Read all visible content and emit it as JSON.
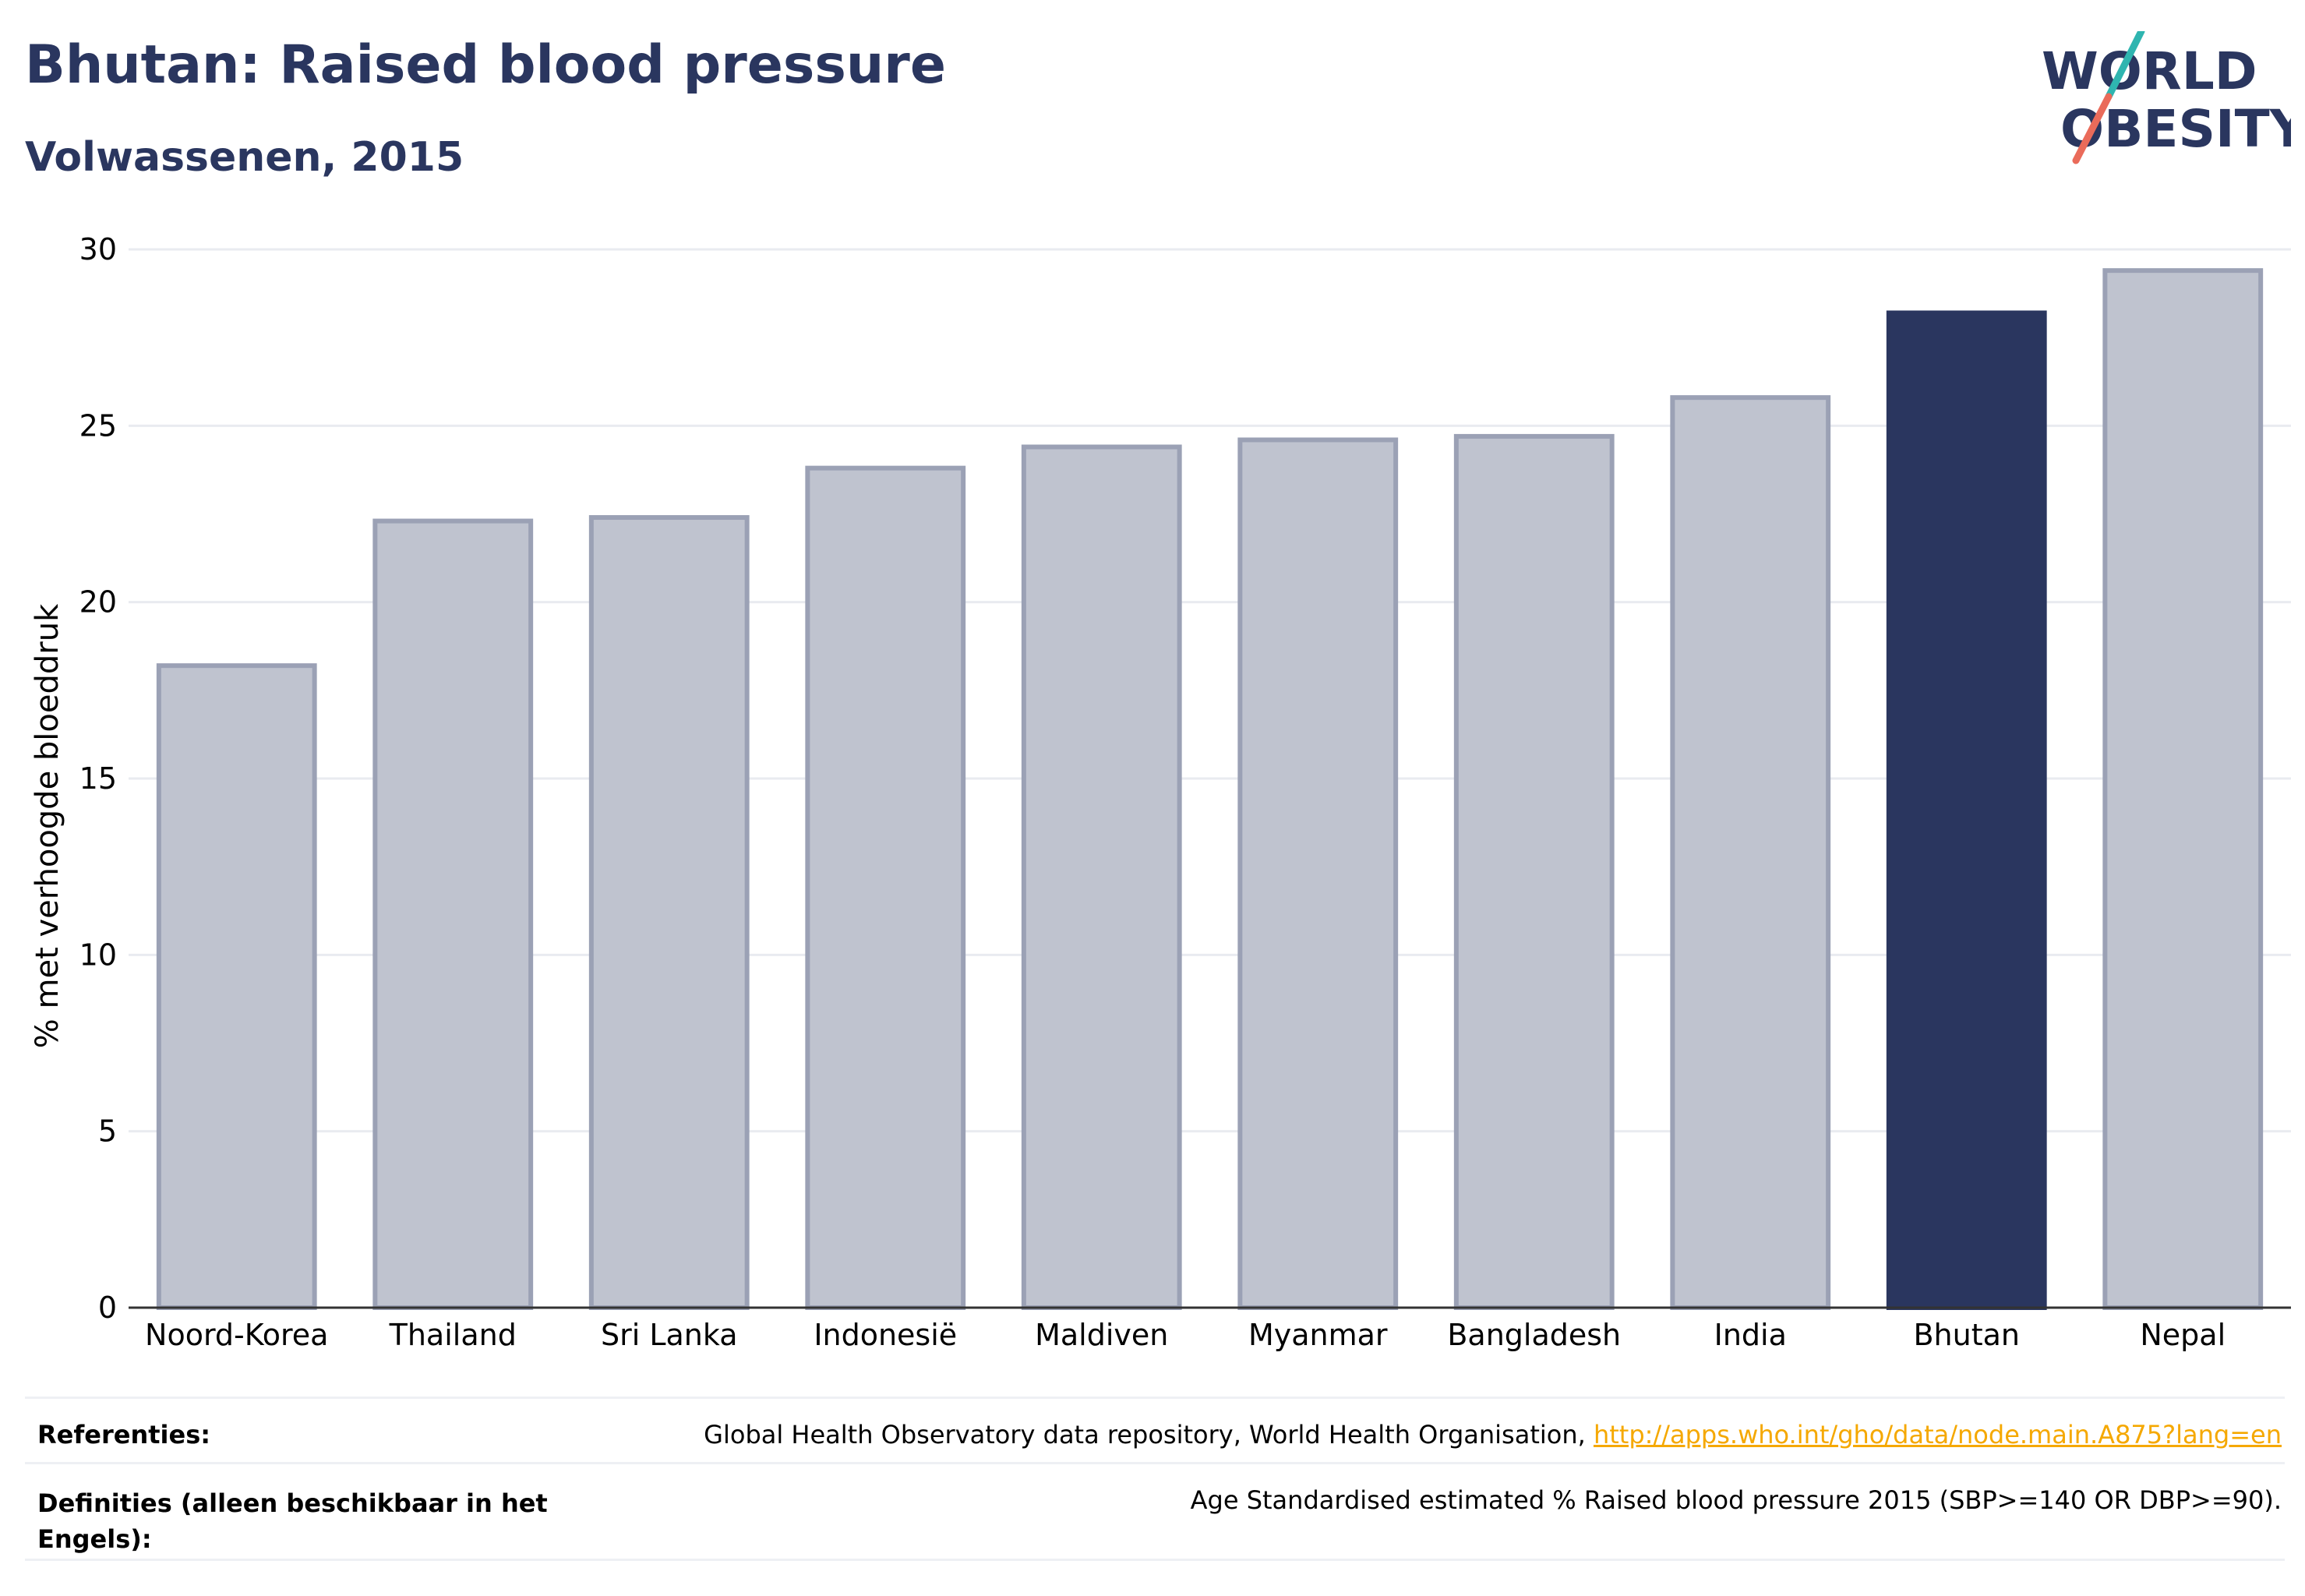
{
  "header": {
    "title": "Bhutan: Raised blood pressure",
    "subtitle": "Volwassenen, 2015"
  },
  "logo": {
    "line1": "WORLD",
    "line2": "OBESITY",
    "text_color": "#2a365f",
    "slash_top_color": "#2fb5b0",
    "slash_bottom_color": "#ea6b5a"
  },
  "chart_data": {
    "type": "bar",
    "categories": [
      "Noord-Korea",
      "Thailand",
      "Sri Lanka",
      "Indonesië",
      "Maldiven",
      "Myanmar",
      "Bangladesh",
      "India",
      "Bhutan",
      "Nepal"
    ],
    "values": [
      18.2,
      22.3,
      22.4,
      23.8,
      24.4,
      24.6,
      24.7,
      25.8,
      28.2,
      29.4
    ],
    "highlight": "Bhutan",
    "ylabel": "% met verhoogde bloeddruk",
    "xlabel": "",
    "ylim": [
      0,
      30
    ],
    "yticks": [
      0,
      5,
      10,
      15,
      20,
      25,
      30
    ],
    "grid": true,
    "colors": {
      "bar": "#bfc3cf",
      "bar_outline": "#9ba1b5",
      "highlight": "#2a365f",
      "grid": "#e9ebf0",
      "axis": "#333333"
    }
  },
  "footer": {
    "references_label": "Referenties:",
    "references_text": "Global Health Observatory data repository, World Health Organisation, ",
    "references_link": "http://apps.who.int/gho/data/node.main.A875?lang=en",
    "definitions_label_line1": "Definities (alleen beschikbaar in het",
    "definitions_label_line2": "Engels):",
    "definitions_text": "Age Standardised estimated % Raised blood pressure 2015 (SBP>=140 OR DBP>=90)."
  }
}
